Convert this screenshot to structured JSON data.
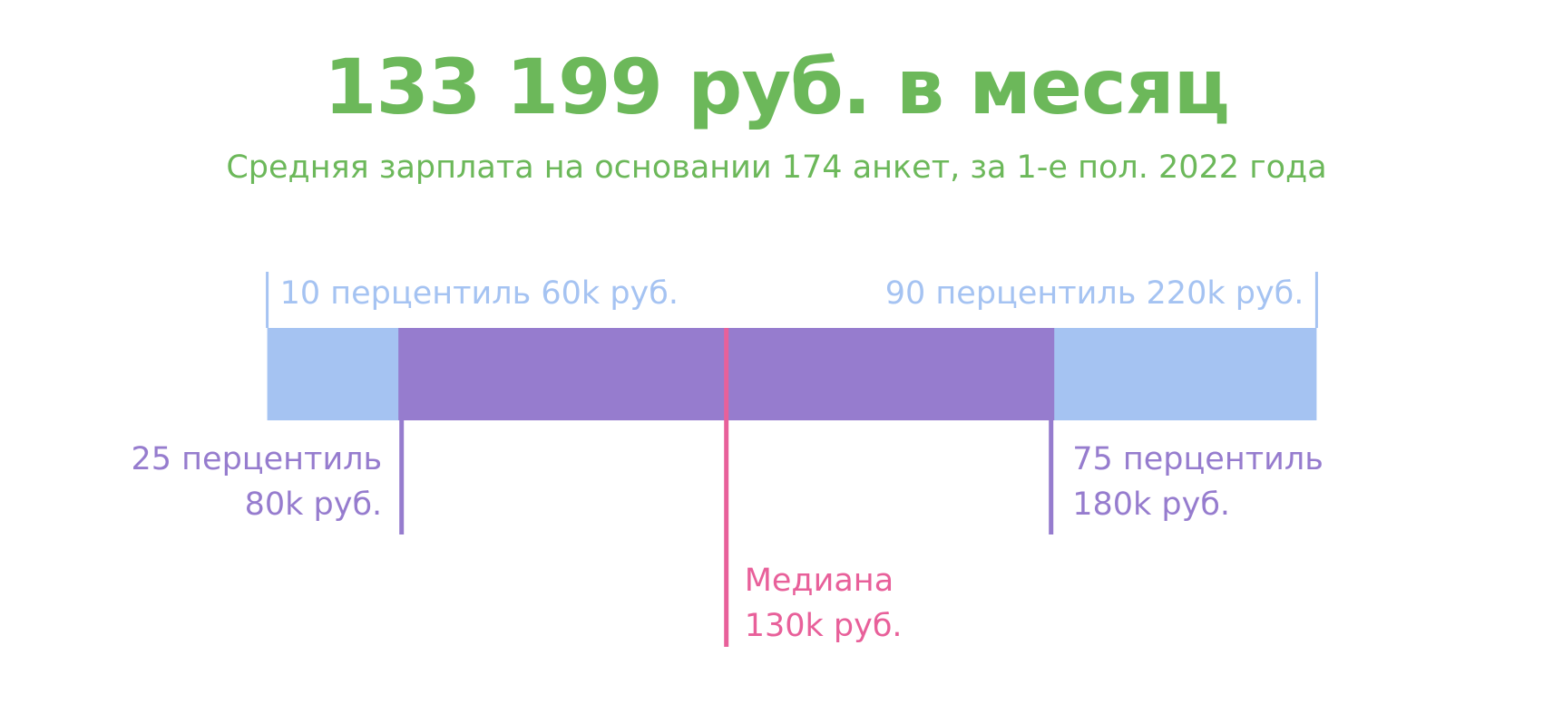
{
  "header": {
    "title": "133 199 руб. в месяц",
    "subtitle": "Средняя зарплата на основании 174 анкет, за 1-е пол. 2022 года"
  },
  "colors": {
    "title": "#6cb85a",
    "outer_range": "#a5c3f2",
    "inner_range": "#967cce",
    "median": "#e8609a"
  },
  "chart_data": {
    "type": "box",
    "unit": "руб.",
    "scale": [
      40000,
      240000
    ],
    "average": 133199,
    "sample_size": 174,
    "period": "1-е пол. 2022 года",
    "percentiles": {
      "p10": 60000,
      "p25": 80000,
      "median": 130000,
      "p75": 180000,
      "p90": 220000
    },
    "labels": {
      "p10": [
        "10 перцентиль 60k руб."
      ],
      "p90": [
        "90 перцентиль 220k руб."
      ],
      "p25": [
        "25 перцентиль",
        "80k руб."
      ],
      "p75": [
        "75 перцентиль",
        "180k руб."
      ],
      "median": [
        "Медиана",
        "130k руб."
      ]
    }
  }
}
